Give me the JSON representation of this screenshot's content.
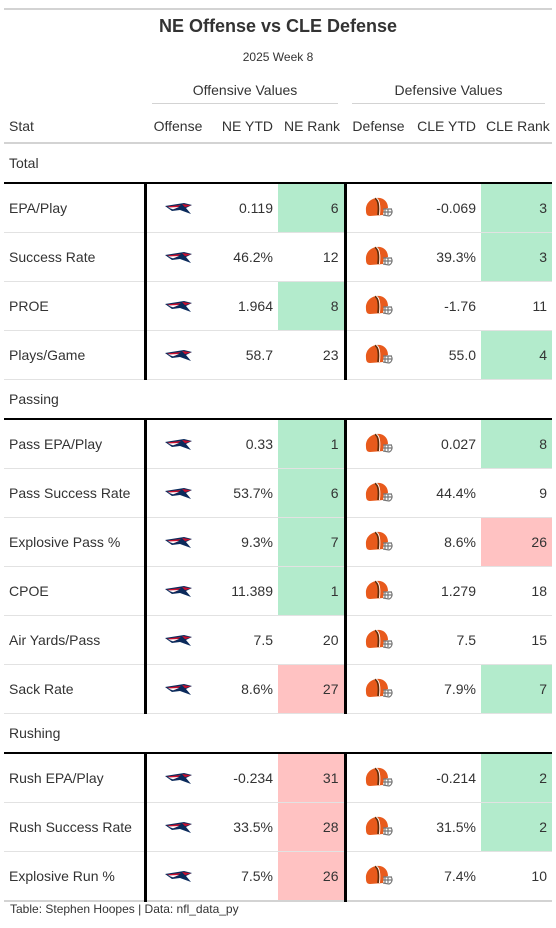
{
  "header": {
    "title": "NE Offense vs CLE Defense",
    "subtitle": "2025 Week 8"
  },
  "spanners": {
    "offense": "Offensive Values",
    "defense": "Defensive Values"
  },
  "columns": {
    "stat": "Stat",
    "offense": "Offense",
    "ne_ytd": "NE YTD",
    "ne_rank": "NE Rank",
    "defense": "Defense",
    "cle_ytd": "CLE YTD",
    "cle_rank": "CLE Rank"
  },
  "icons": {
    "offense_logo": "patriots-logo-icon",
    "defense_logo": "browns-helmet-icon"
  },
  "colors": {
    "good_rank": "#b3ebcc",
    "bad_rank": "#ffc2c2"
  },
  "groups": [
    {
      "label": "Total",
      "rows": [
        {
          "stat": "EPA/Play",
          "ne_ytd": "0.119",
          "ne_rank": "6",
          "ne_class": "good",
          "cle_ytd": "-0.069",
          "cle_rank": "3",
          "cle_class": "good"
        },
        {
          "stat": "Success Rate",
          "ne_ytd": "46.2%",
          "ne_rank": "12",
          "ne_class": "",
          "cle_ytd": "39.3%",
          "cle_rank": "3",
          "cle_class": "good"
        },
        {
          "stat": "PROE",
          "ne_ytd": "1.964",
          "ne_rank": "8",
          "ne_class": "good",
          "cle_ytd": "-1.76",
          "cle_rank": "11",
          "cle_class": ""
        },
        {
          "stat": "Plays/Game",
          "ne_ytd": "58.7",
          "ne_rank": "23",
          "ne_class": "",
          "cle_ytd": "55.0",
          "cle_rank": "4",
          "cle_class": "good"
        }
      ]
    },
    {
      "label": "Passing",
      "rows": [
        {
          "stat": "Pass EPA/Play",
          "ne_ytd": "0.33",
          "ne_rank": "1",
          "ne_class": "good",
          "cle_ytd": "0.027",
          "cle_rank": "8",
          "cle_class": "good"
        },
        {
          "stat": "Pass Success Rate",
          "ne_ytd": "53.7%",
          "ne_rank": "6",
          "ne_class": "good",
          "cle_ytd": "44.4%",
          "cle_rank": "9",
          "cle_class": ""
        },
        {
          "stat": "Explosive Pass %",
          "ne_ytd": "9.3%",
          "ne_rank": "7",
          "ne_class": "good",
          "cle_ytd": "8.6%",
          "cle_rank": "26",
          "cle_class": "bad"
        },
        {
          "stat": "CPOE",
          "ne_ytd": "11.389",
          "ne_rank": "1",
          "ne_class": "good",
          "cle_ytd": "1.279",
          "cle_rank": "18",
          "cle_class": ""
        },
        {
          "stat": "Air Yards/Pass",
          "ne_ytd": "7.5",
          "ne_rank": "20",
          "ne_class": "",
          "cle_ytd": "7.5",
          "cle_rank": "15",
          "cle_class": ""
        },
        {
          "stat": "Sack Rate",
          "ne_ytd": "8.6%",
          "ne_rank": "27",
          "ne_class": "bad",
          "cle_ytd": "7.9%",
          "cle_rank": "7",
          "cle_class": "good"
        }
      ]
    },
    {
      "label": "Rushing",
      "rows": [
        {
          "stat": "Rush EPA/Play",
          "ne_ytd": "-0.234",
          "ne_rank": "31",
          "ne_class": "bad",
          "cle_ytd": "-0.214",
          "cle_rank": "2",
          "cle_class": "good"
        },
        {
          "stat": "Rush Success Rate",
          "ne_ytd": "33.5%",
          "ne_rank": "28",
          "ne_class": "bad",
          "cle_ytd": "31.5%",
          "cle_rank": "2",
          "cle_class": "good"
        },
        {
          "stat": "Explosive Run %",
          "ne_ytd": "7.5%",
          "ne_rank": "26",
          "ne_class": "bad",
          "cle_ytd": "7.4%",
          "cle_rank": "10",
          "cle_class": ""
        }
      ]
    }
  ],
  "footer": "Table: Stephen Hoopes | Data: nfl_data_py"
}
